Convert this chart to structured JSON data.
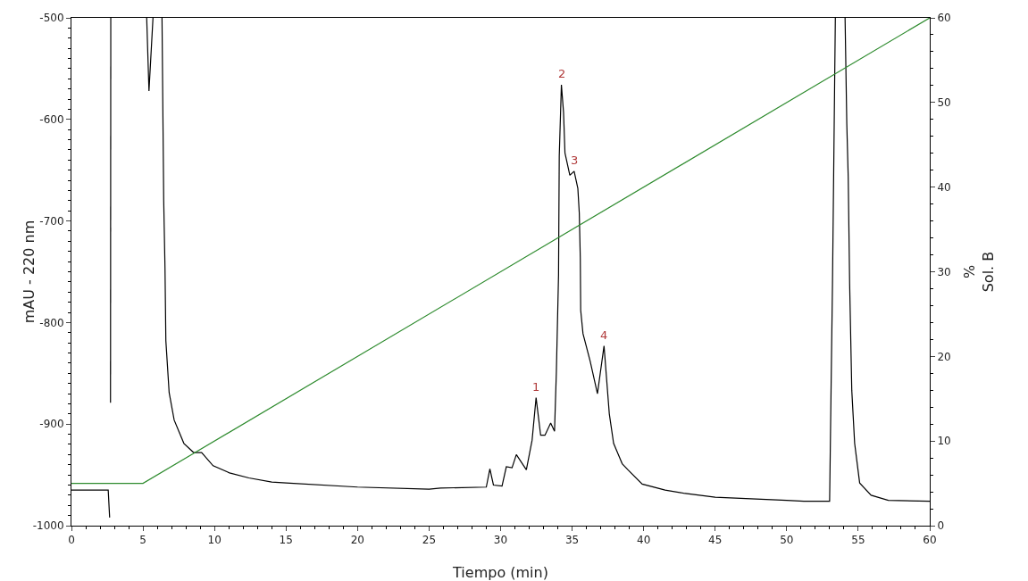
{
  "chart_data": {
    "type": "line",
    "xlabel": "Tiempo (min)",
    "ylabel": "mAU - 220 nm",
    "y2label": "%\nSol. B",
    "xlim": [
      0,
      60
    ],
    "xticks": [
      0,
      5,
      10,
      15,
      20,
      25,
      30,
      35,
      40,
      45,
      50,
      55,
      60
    ],
    "ylim": [
      -1000,
      -500
    ],
    "yticks": [
      -1000,
      -900,
      -800,
      -700,
      -600,
      -500
    ],
    "y2lim": [
      0,
      60
    ],
    "y2ticks": [
      0,
      10,
      20,
      30,
      40,
      50,
      60
    ],
    "grid": false,
    "marker": "none",
    "line_style": "solid",
    "series": [
      {
        "color": "#000000",
        "x": [
          0,
          2.57,
          2.67,
          null,
          2.73,
          2.75,
          null,
          5.26,
          5.42,
          5.7,
          null,
          6.33,
          6.45,
          6.54,
          6.6,
          6.83,
          7.18,
          7.86,
          8.54,
          9.1,
          9.9,
          11.05,
          12.4,
          14,
          15,
          20,
          25,
          25.8,
          29,
          29.25,
          29.5,
          30.1,
          30.4,
          30.8,
          31.1,
          31.8,
          32.2,
          32.48,
          32.8,
          33.1,
          33.5,
          33.77,
          33.9,
          34.05,
          34.1,
          34.25,
          34.4,
          34.5,
          34.84,
          35.14,
          35.4,
          35.5,
          35.57,
          35.6,
          35.76,
          36.26,
          36.77,
          37.23,
          37.6,
          37.9,
          38.5,
          38.9,
          39.9,
          41.5,
          42.8,
          45,
          50,
          51.2,
          53,
          53.1,
          53.2,
          53.4,
          null,
          54.08,
          54.2,
          54.3,
          54.4,
          54.55,
          54.75,
          55.1,
          55.9,
          57.1,
          60
        ],
        "values": [
          -965,
          -965,
          -992,
          null,
          -879,
          -500,
          null,
          -500,
          -572,
          -500,
          null,
          -500,
          -680,
          -747,
          -818,
          -869,
          -896,
          -919,
          -928,
          -928,
          -941,
          -948,
          -953,
          -957,
          -958,
          -962,
          -964,
          -963,
          -962,
          -944,
          -960,
          -961,
          -942,
          -943,
          -930,
          -945,
          -916,
          -874,
          -911,
          -911,
          -899,
          -907,
          -848,
          -753,
          -636,
          -566,
          -593,
          -633,
          -655,
          -651,
          -668,
          -692,
          -736,
          -788,
          -811,
          -838,
          -870,
          -823,
          -890,
          -919,
          -939,
          -945,
          -959,
          -965,
          -968,
          -972,
          -975,
          -976,
          -976,
          -867,
          -762,
          -500,
          null,
          -500,
          -604,
          -657,
          -762,
          -867,
          -919,
          -958,
          -970,
          -975,
          -976
        ]
      },
      {
        "color": "#2e8b2e",
        "axis": "y2",
        "x": [
          0,
          5,
          60
        ],
        "values": [
          5,
          5,
          60
        ]
      }
    ],
    "annotations": [
      {
        "text": "1",
        "x": 32.48,
        "y": -874
      },
      {
        "text": "2",
        "x": 34.25,
        "y": -566
      },
      {
        "text": "3",
        "x": 35.14,
        "y": -651
      },
      {
        "text": "4",
        "x": 37.23,
        "y": -823
      }
    ]
  }
}
